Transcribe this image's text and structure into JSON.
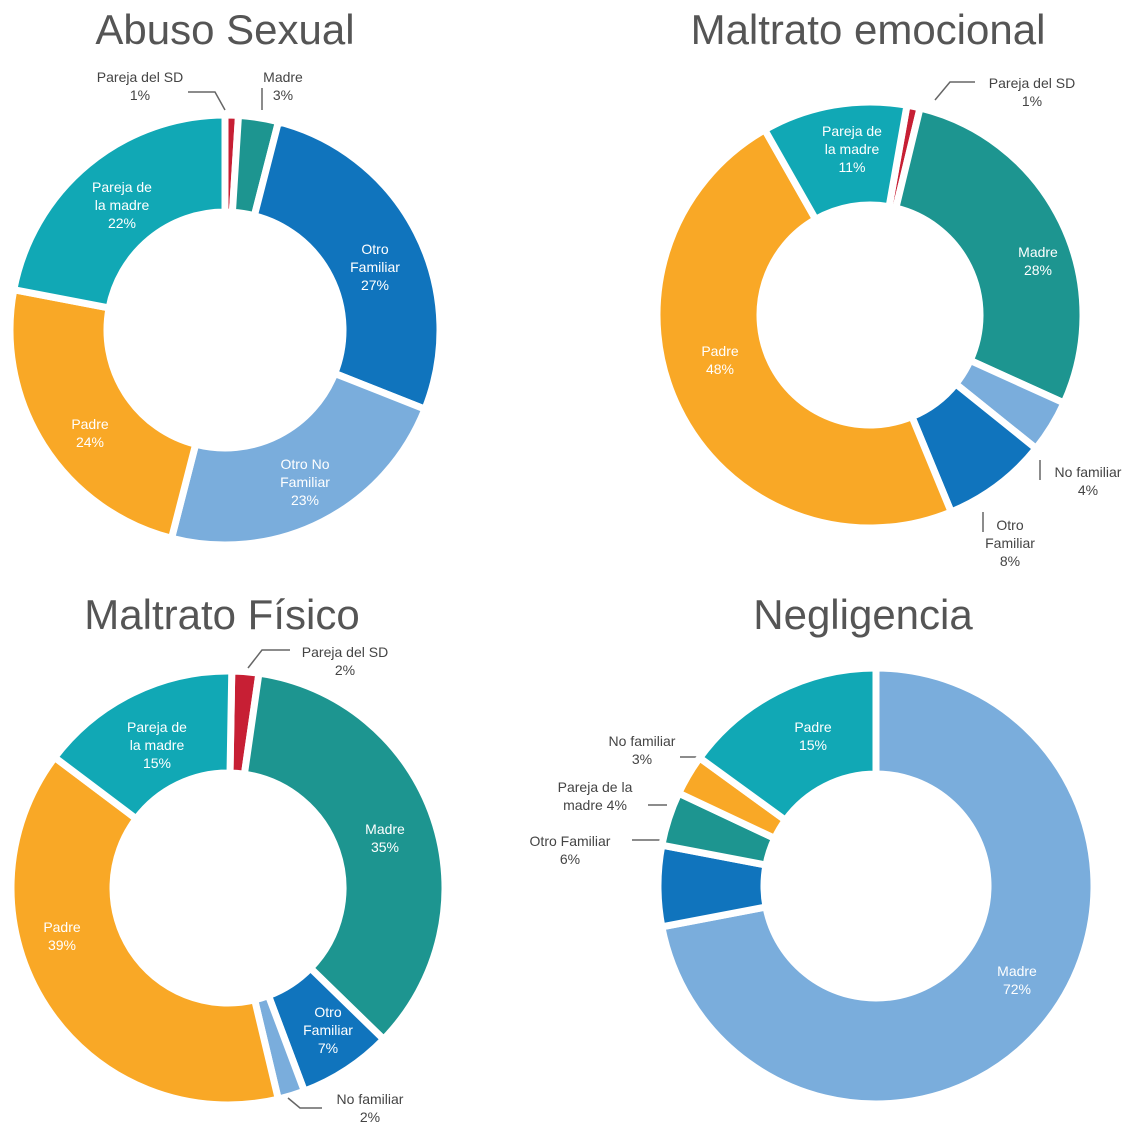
{
  "chart_data": [
    {
      "type": "donut",
      "title": "Abuso Sexual",
      "categories": [
        "Pareja del SD",
        "Madre",
        "Otro Familiar",
        "Otro No Familiar",
        "Padre",
        "Pareja de la madre"
      ],
      "values": [
        1,
        3,
        27,
        23,
        24,
        22
      ],
      "value_labels": [
        "1%",
        "3%",
        "27%",
        "23%",
        "24%",
        "22%"
      ],
      "colors": [
        "#c71f34",
        "#1d9590",
        "#1074bd",
        "#7aaddc",
        "#f9a826",
        "#11a8b5"
      ]
    },
    {
      "type": "donut",
      "title": "Maltrato emocional",
      "categories": [
        "Pareja del SD",
        "Madre",
        "No familiar",
        "Otro Familiar",
        "Padre",
        "Pareja de la madre"
      ],
      "values": [
        1,
        28,
        4,
        8,
        48,
        11
      ],
      "value_labels": [
        "1%",
        "28%",
        "4%",
        "8%",
        "48%",
        "11%"
      ],
      "colors": [
        "#c71f34",
        "#1d9590",
        "#7aaddc",
        "#1074bd",
        "#f9a826",
        "#11a8b5"
      ]
    },
    {
      "type": "donut",
      "title": "Maltrato Físico",
      "categories": [
        "Pareja del SD",
        "Madre",
        "Otro Familiar",
        "No familiar",
        "Padre",
        "Pareja de la madre"
      ],
      "values": [
        2,
        35,
        7,
        2,
        39,
        15
      ],
      "value_labels": [
        "2%",
        "35%",
        "7%",
        "2%",
        "39%",
        "15%"
      ],
      "colors": [
        "#c71f34",
        "#1d9590",
        "#1074bd",
        "#7aaddc",
        "#f9a826",
        "#11a8b5"
      ]
    },
    {
      "type": "donut",
      "title": "Negligencia",
      "categories": [
        "Madre",
        "Otro Familiar",
        "Pareja de la madre",
        "No familiar",
        "Padre"
      ],
      "values": [
        72,
        6,
        4,
        3,
        15
      ],
      "value_labels": [
        "72%",
        "6%",
        "4%",
        "3%",
        "15%"
      ],
      "colors": [
        "#7aaddc",
        "#1074bd",
        "#1d9590",
        "#f9a826",
        "#11a8b5"
      ]
    }
  ]
}
